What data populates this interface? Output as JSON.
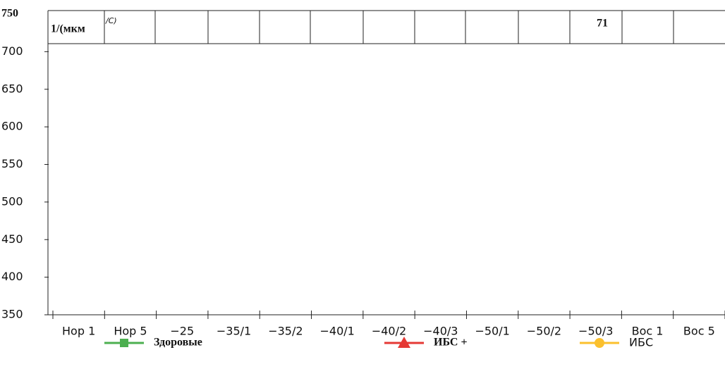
{
  "chart_data": {
    "type": "line",
    "y_label": "1/(мкм",
    "y_label_unit": "/C)",
    "annotation": "71",
    "categories": [
      "Нор 1",
      "Нор 5",
      "−25",
      "−35/1",
      "−35/2",
      "−40/1",
      "−40/2",
      "−40/3",
      "−50/1",
      "−50/2",
      "−50/3",
      "Вос 1",
      "Вос 5"
    ],
    "series": [
      {
        "name": "Здоровые",
        "color": "#4caf50",
        "marker": "square",
        "values": [
          null,
          null,
          null,
          null,
          null,
          null,
          null,
          null,
          null,
          null,
          null,
          null,
          null
        ]
      },
      {
        "name": "ИБС +",
        "color": "#e53935",
        "marker": "triangle",
        "values": [
          null,
          null,
          null,
          null,
          null,
          null,
          null,
          null,
          null,
          null,
          null,
          null,
          null
        ]
      },
      {
        "name": "ИБС",
        "color": "#fbc02d",
        "marker": "circle",
        "values": [
          null,
          null,
          null,
          null,
          null,
          null,
          null,
          null,
          null,
          null,
          null,
          null,
          null
        ]
      }
    ],
    "ylim": [
      350,
      750
    ],
    "yticks": [
      350,
      400,
      450,
      500,
      550,
      600,
      650,
      700,
      750
    ]
  }
}
